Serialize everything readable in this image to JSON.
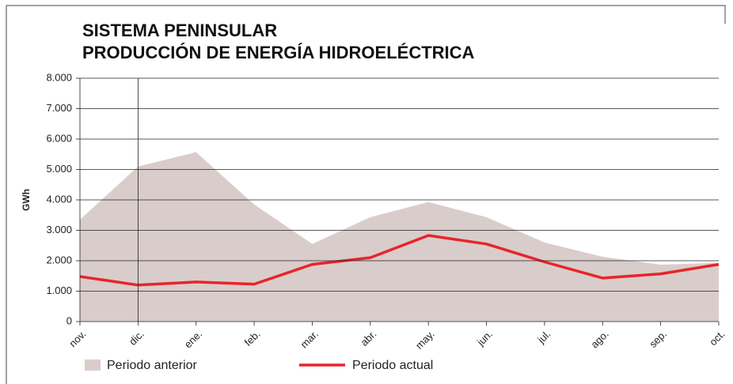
{
  "chart_data": {
    "type": "line",
    "title": "SISTEMA PENINSULAR",
    "subtitle": "PRODUCCIÓN DE ENERGÍA HIDROELÉCTRICA",
    "y_label": "GWh",
    "categories": [
      "nov.",
      "dic.",
      "ene.",
      "feb.",
      "mar.",
      "abr.",
      "may.",
      "jun.",
      "jul.",
      "ago.",
      "sep.",
      "oct."
    ],
    "series": [
      {
        "name": "Periodo anterior",
        "type": "area",
        "color": "#d9cdcb",
        "values": [
          3350,
          5100,
          5570,
          3850,
          2550,
          3430,
          3930,
          3430,
          2600,
          2130,
          1870,
          1930
        ]
      },
      {
        "name": "Periodo actual",
        "type": "line",
        "color": "#e8242b",
        "values": [
          1480,
          1200,
          1300,
          1230,
          1880,
          2100,
          2830,
          2550,
          1960,
          1430,
          1570,
          1880
        ]
      }
    ],
    "ylim": [
      0,
      8000
    ],
    "yticks": [
      0,
      {
        "value": 1000,
        "label": "1.000"
      },
      {
        "value": 2000,
        "label": "2.000"
      },
      {
        "value": 3000,
        "label": "3.000"
      },
      {
        "value": 4000,
        "label": "4.000"
      },
      {
        "value": 5000,
        "label": "5.000"
      },
      {
        "value": 6000,
        "label": "6.000"
      },
      {
        "value": 7000,
        "label": "7.000"
      },
      {
        "value": 8000,
        "label": "8.000"
      }
    ],
    "grid": true,
    "legend": "bottom"
  }
}
